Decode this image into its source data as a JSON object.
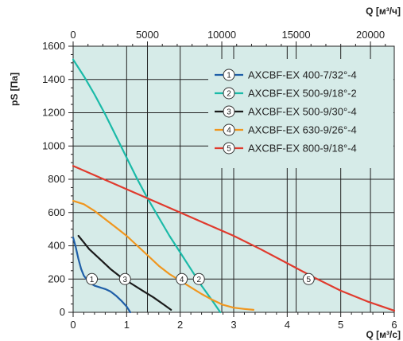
{
  "chart_data": {
    "type": "line",
    "x": {
      "label": "Q [м³/с]",
      "min": 0,
      "max": 6,
      "ticks": [
        0,
        1,
        2,
        3,
        4,
        5,
        6
      ]
    },
    "x_top": {
      "label": "Q [м³/ч]",
      "min": 0,
      "max": 21600,
      "ticks": [
        0,
        5000,
        10000,
        15000,
        20000
      ]
    },
    "y": {
      "label": "pS [Па]",
      "min": 0,
      "max": 1600,
      "ticks": [
        0,
        200,
        400,
        600,
        800,
        1000,
        1200,
        1400,
        1600
      ]
    },
    "grid": true,
    "background": "#d6ebe8",
    "legend_position": "top-right",
    "series": [
      {
        "name": "AXCBF-EX 400-7/32°-4",
        "marker": "1",
        "color": "#1f5fa8",
        "points": [
          [
            0,
            450
          ],
          [
            0.05,
            390
          ],
          [
            0.1,
            320
          ],
          [
            0.15,
            260
          ],
          [
            0.2,
            220
          ],
          [
            0.25,
            200
          ],
          [
            0.3,
            180
          ],
          [
            0.4,
            160
          ],
          [
            0.5,
            150
          ],
          [
            0.6,
            140
          ],
          [
            0.7,
            125
          ],
          [
            0.8,
            100
          ],
          [
            0.9,
            70
          ],
          [
            1.0,
            35
          ],
          [
            1.07,
            0
          ]
        ],
        "marker_at": [
          0.35,
          200
        ]
      },
      {
        "name": "AXCBF-EX 500-9/18°-2",
        "marker": "2",
        "color": "#1bbaa8",
        "points": [
          [
            0,
            1520
          ],
          [
            0.2,
            1420
          ],
          [
            0.4,
            1310
          ],
          [
            0.6,
            1190
          ],
          [
            0.8,
            1060
          ],
          [
            1.0,
            930
          ],
          [
            1.2,
            800
          ],
          [
            1.4,
            680
          ],
          [
            1.6,
            570
          ],
          [
            1.8,
            460
          ],
          [
            2.0,
            360
          ],
          [
            2.2,
            260
          ],
          [
            2.4,
            160
          ],
          [
            2.6,
            70
          ],
          [
            2.75,
            0
          ]
        ],
        "marker_at": [
          2.35,
          200
        ]
      },
      {
        "name": "AXCBF-EX 500-9/30°-4",
        "marker": "3",
        "color": "#1a1a1a",
        "points": [
          [
            0.1,
            460
          ],
          [
            0.2,
            420
          ],
          [
            0.3,
            380
          ],
          [
            0.5,
            320
          ],
          [
            0.7,
            260
          ],
          [
            0.9,
            210
          ],
          [
            1.1,
            170
          ],
          [
            1.3,
            130
          ],
          [
            1.5,
            90
          ],
          [
            1.7,
            45
          ],
          [
            1.83,
            15
          ]
        ],
        "marker_at": [
          0.97,
          200
        ]
      },
      {
        "name": "AXCBF-EX 630-9/26°-4",
        "marker": "4",
        "color": "#f0961e",
        "points": [
          [
            0,
            670
          ],
          [
            0.2,
            650
          ],
          [
            0.4,
            610
          ],
          [
            0.6,
            560
          ],
          [
            0.8,
            510
          ],
          [
            1.0,
            460
          ],
          [
            1.2,
            400
          ],
          [
            1.4,
            340
          ],
          [
            1.6,
            280
          ],
          [
            1.8,
            230
          ],
          [
            2.0,
            190
          ],
          [
            2.2,
            150
          ],
          [
            2.4,
            110
          ],
          [
            2.6,
            75
          ],
          [
            2.8,
            45
          ],
          [
            3.0,
            28
          ],
          [
            3.2,
            20
          ],
          [
            3.37,
            15
          ]
        ],
        "marker_at": [
          2.03,
          200
        ]
      },
      {
        "name": "AXCBF-EX 800-9/18°-4",
        "marker": "5",
        "color": "#e03a2d",
        "points": [
          [
            0,
            880
          ],
          [
            0.5,
            810
          ],
          [
            1.0,
            740
          ],
          [
            1.5,
            670
          ],
          [
            2.0,
            600
          ],
          [
            2.5,
            530
          ],
          [
            3.0,
            460
          ],
          [
            3.5,
            380
          ],
          [
            4.0,
            295
          ],
          [
            4.5,
            210
          ],
          [
            5.0,
            130
          ],
          [
            5.5,
            65
          ],
          [
            6.0,
            10
          ]
        ],
        "marker_at": [
          4.4,
          200
        ]
      }
    ]
  }
}
